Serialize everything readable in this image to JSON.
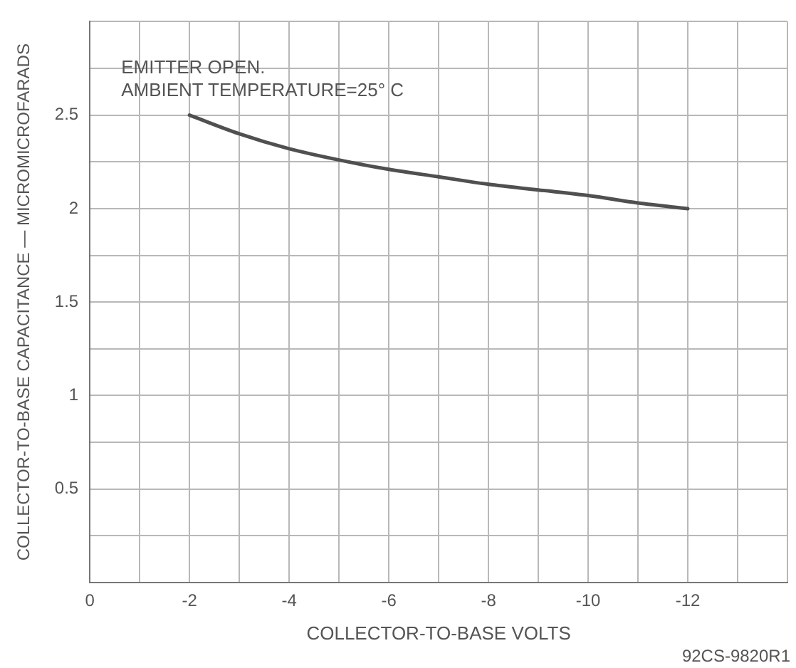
{
  "chart_data": {
    "type": "line",
    "xlabel": "COLLECTOR-TO-BASE VOLTS",
    "ylabel": "COLLECTOR-TO-BASE CAPACITANCE — MICROMICROFARADS",
    "annotations": [
      "EMITTER OPEN.",
      "AMBIENT TEMPERATURE=25° C",
      "92CS-9820R1"
    ],
    "x": [
      -2,
      -3,
      -4,
      -5,
      -6,
      -7,
      -8,
      -9,
      -10,
      -11,
      -12
    ],
    "series": [
      {
        "color": "#505050",
        "values": [
          2.5,
          2.4,
          2.32,
          2.26,
          2.21,
          2.17,
          2.13,
          2.1,
          2.07,
          2.03,
          2.0
        ]
      }
    ],
    "xlim": [
      0,
      -14
    ],
    "xticks": [
      0,
      {
        "value": -1,
        "label": null
      },
      -2,
      {
        "value": -3,
        "label": null
      },
      -4,
      {
        "value": -5,
        "label": null
      },
      -6,
      {
        "value": -7,
        "label": null
      },
      -8,
      {
        "value": -9,
        "label": null
      },
      -10,
      {
        "value": -11,
        "label": null
      },
      -12,
      {
        "value": -13,
        "label": null
      },
      {
        "value": -14,
        "label": null
      }
    ],
    "ylim": [
      0,
      3
    ],
    "yticks": [
      {
        "value": 0,
        "label": null
      },
      {
        "value": 0.25,
        "label": null
      },
      0.5,
      {
        "value": 0.75,
        "label": null
      },
      1,
      {
        "value": 1.25,
        "label": null
      },
      1.5,
      {
        "value": 1.75,
        "label": null
      },
      2,
      {
        "value": 2.25,
        "label": null
      },
      2.5,
      {
        "value": 2.75,
        "label": null
      },
      {
        "value": 3,
        "label": null
      }
    ],
    "grid": true,
    "legend": false,
    "marker": "none",
    "line_style": "solid"
  }
}
